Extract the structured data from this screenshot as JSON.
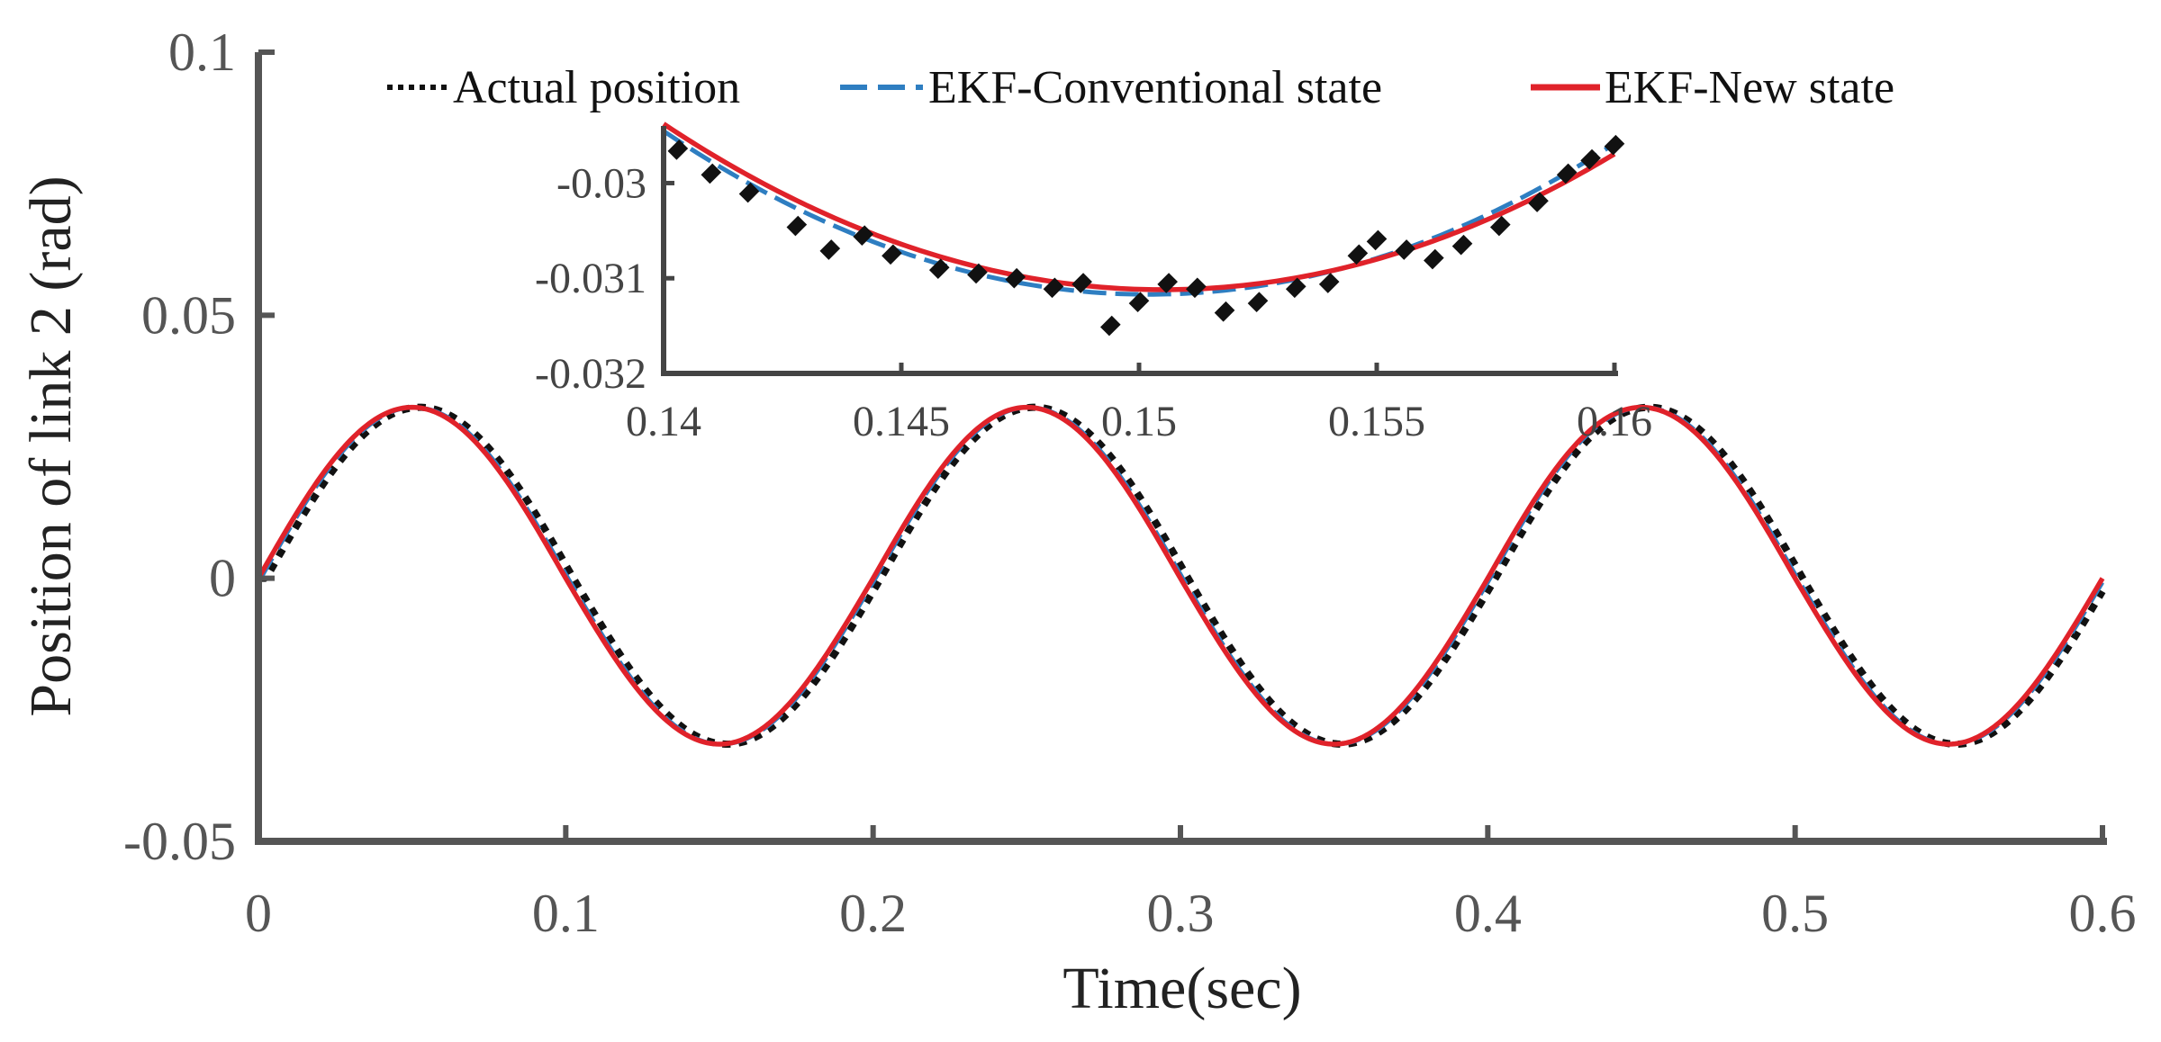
{
  "chart_data": {
    "type": "line",
    "xlabel": "Time(sec)",
    "ylabel": "Position of link 2 (rad)",
    "xlim": [
      0,
      0.6
    ],
    "ylim": [
      -0.05,
      0.1
    ],
    "xticks": [
      "0",
      "0.1",
      "0.2",
      "0.3",
      "0.4",
      "0.5",
      "0.6"
    ],
    "yticks": [
      "0.1",
      "0.05",
      "0",
      "-0.05"
    ],
    "legend": {
      "location": "top",
      "entries": [
        "Actual position",
        "EKF-Conventional state",
        "EKF-New state"
      ]
    },
    "series": [
      {
        "name": "Actual position",
        "style": "dotted",
        "color": "#111111",
        "description": "amplitude ~0.0325 rad, period 0.2 s, slight lag",
        "x": [
          0,
          0.05,
          0.1,
          0.15,
          0.2,
          0.25,
          0.3,
          0.35,
          0.4,
          0.45,
          0.5,
          0.55,
          0.6
        ],
        "y": [
          0,
          0.0325,
          0,
          -0.0315,
          0,
          0.0325,
          0,
          -0.0315,
          0,
          0.0325,
          0,
          -0.0315,
          0
        ]
      },
      {
        "name": "EKF-Conventional state",
        "style": "dashed",
        "color": "#2E7EC1",
        "x": [
          0,
          0.05,
          0.1,
          0.15,
          0.2,
          0.25,
          0.3,
          0.35,
          0.4,
          0.45,
          0.5,
          0.55,
          0.6
        ],
        "y": [
          0,
          0.0325,
          0,
          -0.0315,
          0,
          0.0325,
          0,
          -0.0315,
          0,
          0.0325,
          0,
          -0.0315,
          0
        ]
      },
      {
        "name": "EKF-New state",
        "style": "solid",
        "color": "#E0222A",
        "x": [
          0,
          0.05,
          0.1,
          0.15,
          0.2,
          0.25,
          0.3,
          0.35,
          0.4,
          0.45,
          0.5,
          0.55,
          0.6
        ],
        "y": [
          0,
          0.0325,
          0,
          -0.0315,
          0,
          0.0325,
          0,
          -0.0315,
          0,
          0.0325,
          0,
          -0.0315,
          0
        ]
      }
    ],
    "inset": {
      "xlim": [
        0.14,
        0.16
      ],
      "ylim": [
        -0.032,
        -0.0294
      ],
      "xticks": [
        "0.14",
        "0.145",
        "0.15",
        "0.155",
        "0.16"
      ],
      "yticks": [
        "-0.03",
        "-0.031",
        "-0.032"
      ],
      "actual_points": [
        {
          "x": 0.1403,
          "y": -0.02965
        },
        {
          "x": 0.141,
          "y": -0.0299
        },
        {
          "x": 0.1418,
          "y": -0.0301
        },
        {
          "x": 0.1428,
          "y": -0.03045
        },
        {
          "x": 0.1435,
          "y": -0.0307
        },
        {
          "x": 0.1442,
          "y": -0.03055
        },
        {
          "x": 0.1448,
          "y": -0.03075
        },
        {
          "x": 0.1458,
          "y": -0.0309
        },
        {
          "x": 0.1466,
          "y": -0.03095
        },
        {
          "x": 0.1474,
          "y": -0.031
        },
        {
          "x": 0.1482,
          "y": -0.0311
        },
        {
          "x": 0.1488,
          "y": -0.03105
        },
        {
          "x": 0.1494,
          "y": -0.0315
        },
        {
          "x": 0.15,
          "y": -0.03125
        },
        {
          "x": 0.1506,
          "y": -0.03105
        },
        {
          "x": 0.1512,
          "y": -0.0311
        },
        {
          "x": 0.1518,
          "y": -0.03135
        },
        {
          "x": 0.1525,
          "y": -0.03125
        },
        {
          "x": 0.1533,
          "y": -0.0311
        },
        {
          "x": 0.154,
          "y": -0.03105
        },
        {
          "x": 0.1546,
          "y": -0.03075
        },
        {
          "x": 0.155,
          "y": -0.0306
        },
        {
          "x": 0.1556,
          "y": -0.0307
        },
        {
          "x": 0.1562,
          "y": -0.0308
        },
        {
          "x": 0.1568,
          "y": -0.03065
        },
        {
          "x": 0.1576,
          "y": -0.03045
        },
        {
          "x": 0.1584,
          "y": -0.0302
        },
        {
          "x": 0.159,
          "y": -0.0299
        },
        {
          "x": 0.1595,
          "y": -0.02975
        },
        {
          "x": 0.16,
          "y": -0.0296
        }
      ]
    }
  }
}
